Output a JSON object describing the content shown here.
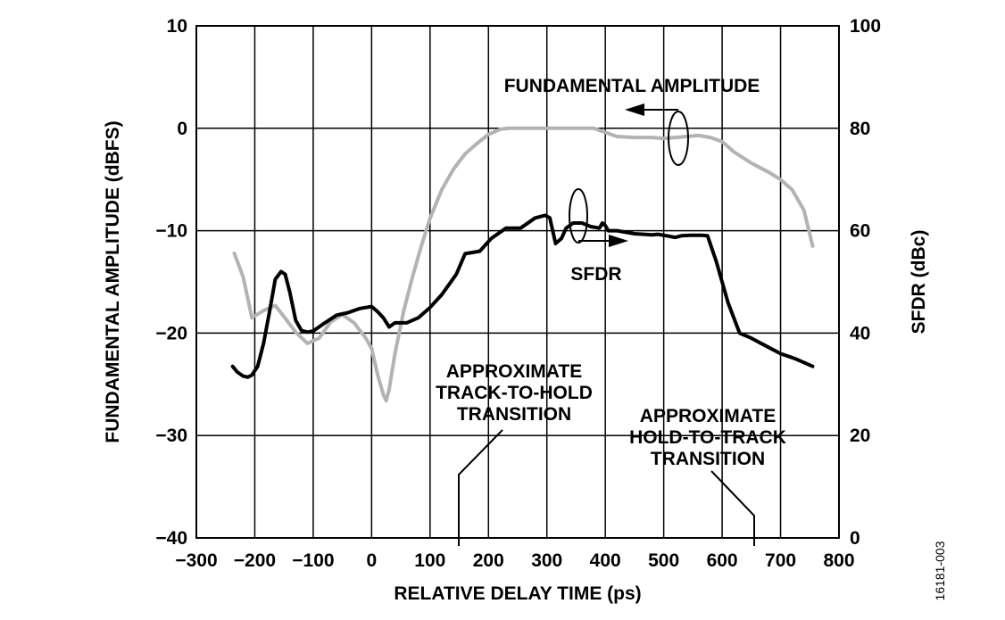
{
  "chart_data": {
    "type": "line",
    "xlabel": "RELATIVE DELAY TIME (ps)",
    "ylabel_left": "FUNDAMENTAL AMPLITUDE (dBFS)",
    "ylabel_right": "SFDR (dBc)",
    "xlim": [
      -300,
      800
    ],
    "ylim_left": [
      -40,
      10
    ],
    "ylim_right": [
      0,
      100
    ],
    "x_ticks": [
      -300,
      -200,
      -100,
      0,
      100,
      200,
      300,
      400,
      500,
      600,
      700,
      800
    ],
    "x_tick_labels": [
      "−300",
      "−200",
      "−100",
      "0",
      "100",
      "200",
      "300",
      "400",
      "500",
      "600",
      "700",
      "800"
    ],
    "y_left_ticks": [
      10,
      0,
      -10,
      -20,
      -30,
      -40
    ],
    "y_left_tick_labels": [
      "10",
      "0",
      "−10",
      "−20",
      "−30",
      "−40"
    ],
    "y_right_ticks": [
      100,
      80,
      60,
      40,
      20,
      0
    ],
    "y_right_tick_labels": [
      "100",
      "80",
      "60",
      "40",
      "20",
      "0"
    ],
    "vertical_grid_x": [
      -200,
      -100,
      0,
      100,
      200,
      300,
      400,
      500,
      600,
      700
    ],
    "horizontal_grid": true,
    "series": [
      {
        "name": "FUNDAMENTAL AMPLITUDE",
        "axis": "left",
        "color": "#b3b3b3",
        "x": [
          -235,
          -220,
          -205,
          -185,
          -165,
          -150,
          -130,
          -110,
          -90,
          -70,
          -50,
          -30,
          -10,
          0,
          10,
          20,
          25,
          30,
          40,
          55,
          70,
          85,
          100,
          120,
          140,
          160,
          180,
          200,
          220,
          235,
          250,
          300,
          350,
          380,
          400,
          420,
          450,
          480,
          500,
          520,
          540,
          560,
          580,
          600,
          620,
          650,
          680,
          700,
          720,
          740,
          755
        ],
        "y": [
          -12.2,
          -14.5,
          -18.5,
          -17.8,
          -17.3,
          -18.4,
          -19.9,
          -21.0,
          -20.5,
          -18.9,
          -18.2,
          -19.0,
          -20.5,
          -21.5,
          -24.0,
          -26.0,
          -26.6,
          -25.5,
          -22.0,
          -17.8,
          -14.5,
          -11.5,
          -8.8,
          -6.0,
          -4.0,
          -2.5,
          -1.5,
          -0.6,
          -0.1,
          0.0,
          0.0,
          0.0,
          0.0,
          0.0,
          -0.4,
          -0.8,
          -0.9,
          -0.9,
          -1.0,
          -0.9,
          -0.8,
          -0.7,
          -0.9,
          -1.3,
          -2.3,
          -3.4,
          -4.3,
          -5.0,
          -6.0,
          -8.0,
          -11.5
        ]
      },
      {
        "name": "SFDR",
        "axis": "right",
        "color": "#000000",
        "x": [
          -238,
          -230,
          -220,
          -212,
          -205,
          -195,
          -185,
          -175,
          -165,
          -155,
          -148,
          -140,
          -130,
          -120,
          -110,
          -100,
          -80,
          -60,
          -40,
          -20,
          0,
          10,
          20,
          30,
          40,
          60,
          80,
          100,
          120,
          145,
          160,
          185,
          205,
          230,
          255,
          280,
          297,
          305,
          315,
          325,
          333,
          345,
          360,
          375,
          390,
          395,
          400,
          405,
          420,
          450,
          480,
          490,
          505,
          520,
          530,
          545,
          565,
          575,
          590,
          610,
          630,
          650,
          675,
          700,
          725,
          745,
          755
        ],
        "y": [
          33.5,
          32.4,
          31.6,
          31.4,
          31.8,
          33.5,
          38,
          44,
          50.5,
          52,
          51.5,
          48,
          42.5,
          40.5,
          40.2,
          40.4,
          42,
          43.5,
          44,
          44.8,
          45.2,
          44.2,
          43,
          41.2,
          42,
          42,
          43,
          45,
          47.5,
          51.5,
          55.5,
          56,
          58.5,
          60.5,
          60.5,
          62.5,
          63,
          62.5,
          57.5,
          58.5,
          60.5,
          61.5,
          61.5,
          60.8,
          60.5,
          61.5,
          61,
          60,
          60,
          59.4,
          59.2,
          59.3,
          59,
          58.7,
          59,
          59.1,
          59.1,
          59,
          54,
          46,
          40,
          39,
          37.5,
          36,
          35,
          34,
          33.5
        ]
      }
    ],
    "annotations": {
      "fund_label": "FUNDAMENTAL AMPLITUDE",
      "sfdr_label": "SFDR",
      "tth_line1": "APPROXIMATE",
      "tth_line2": "TRACK-TO-HOLD",
      "tth_line3": "TRANSITION",
      "htt_line1": "APPROXIMATE",
      "htt_line2": "HOLD-TO-TRACK",
      "htt_line3": "TRANSITION"
    }
  },
  "figure_number": "16181-003"
}
